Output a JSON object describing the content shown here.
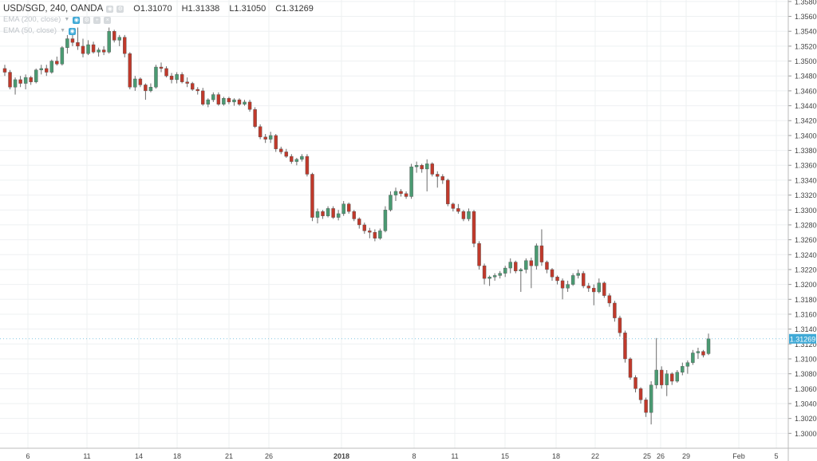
{
  "legend": {
    "symbol_line": "USD/SGD, 240, OANDA",
    "open": "O1.31070",
    "high": "H1.31338",
    "low": "L1.31050",
    "close": "C1.31269",
    "indicators": [
      {
        "label": "EMA (200, close)"
      },
      {
        "label": "EMA (50, close)"
      }
    ]
  },
  "price_label": "1.31269",
  "colors": {
    "up": "#4a9a72",
    "down": "#c0392b",
    "wick": "#6b6b6b",
    "grid": "#eef0f2",
    "axis_text": "#444444",
    "price_label_bg": "#3fa9d6"
  },
  "chart_data": {
    "type": "candlestick",
    "y_axis": {
      "range": [
        1.298,
        1.3582
      ],
      "ticks": [
        "1.35800",
        "1.35600",
        "1.35400",
        "1.35200",
        "1.35000",
        "1.34800",
        "1.34600",
        "1.34400",
        "1.34200",
        "1.34000",
        "1.33800",
        "1.33600",
        "1.33400",
        "1.33200",
        "1.33000",
        "1.32800",
        "1.32600",
        "1.32400",
        "1.32200",
        "1.32000",
        "1.31800",
        "1.31600",
        "1.31400",
        "1.31200",
        "1.31000",
        "1.30800",
        "1.30600",
        "1.30400",
        "1.30200",
        "1.30000"
      ]
    },
    "x_axis": {
      "ticks": [
        {
          "label": "6",
          "x": 35,
          "bold": false
        },
        {
          "label": "11",
          "x": 109,
          "bold": false
        },
        {
          "label": "14",
          "x": 174,
          "bold": false
        },
        {
          "label": "18",
          "x": 222,
          "bold": false
        },
        {
          "label": "21",
          "x": 287,
          "bold": false
        },
        {
          "label": "26",
          "x": 337,
          "bold": false
        },
        {
          "label": "2018",
          "x": 428,
          "bold": true
        },
        {
          "label": "8",
          "x": 519,
          "bold": false
        },
        {
          "label": "11",
          "x": 570,
          "bold": false
        },
        {
          "label": "15",
          "x": 633,
          "bold": false
        },
        {
          "label": "18",
          "x": 697,
          "bold": false
        },
        {
          "label": "22",
          "x": 746,
          "bold": false
        },
        {
          "label": "25",
          "x": 811,
          "bold": false
        },
        {
          "label": "26",
          "x": 828,
          "bold": false
        },
        {
          "label": "29",
          "x": 860,
          "bold": false
        },
        {
          "label": "Feb",
          "x": 926,
          "bold": false
        },
        {
          "label": "5",
          "x": 973,
          "bold": false
        }
      ]
    },
    "candles": [
      [
        1.349,
        1.3495,
        1.348,
        1.3485
      ],
      [
        1.3485,
        1.3488,
        1.3462,
        1.3465
      ],
      [
        1.3465,
        1.3478,
        1.3455,
        1.3475
      ],
      [
        1.3475,
        1.348,
        1.3465,
        1.347
      ],
      [
        1.347,
        1.3482,
        1.3462,
        1.3478
      ],
      [
        1.3478,
        1.348,
        1.3468,
        1.3472
      ],
      [
        1.3472,
        1.349,
        1.347,
        1.3488
      ],
      [
        1.3488,
        1.3495,
        1.3482,
        1.349
      ],
      [
        1.349,
        1.3495,
        1.348,
        1.3485
      ],
      [
        1.3485,
        1.3502,
        1.3483,
        1.35
      ],
      [
        1.35,
        1.3506,
        1.3494,
        1.3496
      ],
      [
        1.3496,
        1.352,
        1.3494,
        1.3518
      ],
      [
        1.3518,
        1.3535,
        1.351,
        1.353
      ],
      [
        1.353,
        1.354,
        1.352,
        1.3525
      ],
      [
        1.3525,
        1.3545,
        1.3515,
        1.352
      ],
      [
        1.352,
        1.353,
        1.3505,
        1.351
      ],
      [
        1.351,
        1.3528,
        1.3508,
        1.3522
      ],
      [
        1.3522,
        1.3526,
        1.351,
        1.3512
      ],
      [
        1.3512,
        1.3518,
        1.3506,
        1.3515
      ],
      [
        1.3515,
        1.352,
        1.3508,
        1.3512
      ],
      [
        1.3512,
        1.3545,
        1.351,
        1.354
      ],
      [
        1.354,
        1.3542,
        1.3525,
        1.3528
      ],
      [
        1.3528,
        1.3535,
        1.352,
        1.3532
      ],
      [
        1.3532,
        1.3535,
        1.3505,
        1.351
      ],
      [
        1.351,
        1.3512,
        1.3462,
        1.3465
      ],
      [
        1.3465,
        1.348,
        1.346,
        1.3476
      ],
      [
        1.3476,
        1.3478,
        1.3465,
        1.3468
      ],
      [
        1.3468,
        1.347,
        1.3448,
        1.346
      ],
      [
        1.346,
        1.347,
        1.3458,
        1.3465
      ],
      [
        1.3465,
        1.3495,
        1.3463,
        1.3492
      ],
      [
        1.3492,
        1.3498,
        1.3485,
        1.349
      ],
      [
        1.349,
        1.3493,
        1.3478,
        1.348
      ],
      [
        1.348,
        1.3484,
        1.347,
        1.3475
      ],
      [
        1.3475,
        1.3485,
        1.347,
        1.3482
      ],
      [
        1.3482,
        1.3485,
        1.347,
        1.3472
      ],
      [
        1.3472,
        1.3478,
        1.3465,
        1.347
      ],
      [
        1.347,
        1.3472,
        1.346,
        1.3462
      ],
      [
        1.3462,
        1.3465,
        1.3455,
        1.346
      ],
      [
        1.346,
        1.3464,
        1.344,
        1.3442
      ],
      [
        1.3442,
        1.345,
        1.3438,
        1.3448
      ],
      [
        1.3448,
        1.3458,
        1.3445,
        1.3455
      ],
      [
        1.3455,
        1.3458,
        1.344,
        1.3442
      ],
      [
        1.3442,
        1.3452,
        1.344,
        1.345
      ],
      [
        1.345,
        1.3452,
        1.3442,
        1.3445
      ],
      [
        1.3445,
        1.345,
        1.344,
        1.3448
      ],
      [
        1.3448,
        1.345,
        1.344,
        1.3442
      ],
      [
        1.3442,
        1.3448,
        1.344,
        1.3445
      ],
      [
        1.3445,
        1.3448,
        1.3432,
        1.3435
      ],
      [
        1.3435,
        1.3438,
        1.341,
        1.3412
      ],
      [
        1.3412,
        1.3415,
        1.3395,
        1.3398
      ],
      [
        1.3398,
        1.3402,
        1.339,
        1.3395
      ],
      [
        1.3395,
        1.3405,
        1.339,
        1.34
      ],
      [
        1.34,
        1.3402,
        1.3378,
        1.3382
      ],
      [
        1.3382,
        1.3385,
        1.3375,
        1.3378
      ],
      [
        1.3378,
        1.3382,
        1.337,
        1.3372
      ],
      [
        1.3372,
        1.3375,
        1.3362,
        1.3365
      ],
      [
        1.3365,
        1.337,
        1.336,
        1.3368
      ],
      [
        1.3368,
        1.3375,
        1.3365,
        1.3372
      ],
      [
        1.3372,
        1.3375,
        1.3345,
        1.3348
      ],
      [
        1.3348,
        1.335,
        1.3285,
        1.329
      ],
      [
        1.329,
        1.3302,
        1.3282,
        1.3298
      ],
      [
        1.3298,
        1.33,
        1.3288,
        1.3292
      ],
      [
        1.3292,
        1.3305,
        1.329,
        1.3302
      ],
      [
        1.3302,
        1.3305,
        1.3288,
        1.329
      ],
      [
        1.329,
        1.33,
        1.3286,
        1.3295
      ],
      [
        1.3295,
        1.3312,
        1.3292,
        1.3308
      ],
      [
        1.3308,
        1.331,
        1.3295,
        1.3298
      ],
      [
        1.3298,
        1.33,
        1.3285,
        1.3288
      ],
      [
        1.3288,
        1.329,
        1.3275,
        1.328
      ],
      [
        1.328,
        1.3283,
        1.3268,
        1.3272
      ],
      [
        1.3272,
        1.3276,
        1.3262,
        1.327
      ],
      [
        1.327,
        1.3274,
        1.3258,
        1.3262
      ],
      [
        1.3262,
        1.3275,
        1.326,
        1.3272
      ],
      [
        1.3272,
        1.3305,
        1.327,
        1.33
      ],
      [
        1.33,
        1.3325,
        1.3298,
        1.332
      ],
      [
        1.332,
        1.333,
        1.3312,
        1.3325
      ],
      [
        1.3325,
        1.3328,
        1.3318,
        1.3322
      ],
      [
        1.3322,
        1.3325,
        1.3315,
        1.3318
      ],
      [
        1.3318,
        1.3362,
        1.3315,
        1.3358
      ],
      [
        1.3358,
        1.3365,
        1.335,
        1.336
      ],
      [
        1.336,
        1.3362,
        1.335,
        1.3355
      ],
      [
        1.3355,
        1.3368,
        1.3325,
        1.3362
      ],
      [
        1.3362,
        1.3364,
        1.3345,
        1.3348
      ],
      [
        1.3348,
        1.3352,
        1.333,
        1.3345
      ],
      [
        1.3345,
        1.3348,
        1.3335,
        1.334
      ],
      [
        1.334,
        1.3342,
        1.3305,
        1.3308
      ],
      [
        1.3308,
        1.331,
        1.3298,
        1.3302
      ],
      [
        1.3302,
        1.3308,
        1.3295,
        1.3298
      ],
      [
        1.3298,
        1.33,
        1.3285,
        1.3288
      ],
      [
        1.3288,
        1.3302,
        1.3285,
        1.3298
      ],
      [
        1.3298,
        1.33,
        1.325,
        1.3255
      ],
      [
        1.3255,
        1.3258,
        1.322,
        1.3225
      ],
      [
        1.3225,
        1.3228,
        1.32,
        1.3208
      ],
      [
        1.3208,
        1.3212,
        1.3198,
        1.321
      ],
      [
        1.321,
        1.3215,
        1.3205,
        1.3212
      ],
      [
        1.3212,
        1.3218,
        1.3208,
        1.3215
      ],
      [
        1.3215,
        1.3225,
        1.321,
        1.3222
      ],
      [
        1.3222,
        1.3235,
        1.3215,
        1.323
      ],
      [
        1.323,
        1.3232,
        1.3215,
        1.3218
      ],
      [
        1.3218,
        1.3222,
        1.319,
        1.322
      ],
      [
        1.322,
        1.3235,
        1.3215,
        1.3232
      ],
      [
        1.3232,
        1.3236,
        1.3195,
        1.3225
      ],
      [
        1.3225,
        1.3255,
        1.322,
        1.3252
      ],
      [
        1.3252,
        1.3274,
        1.3225,
        1.323
      ],
      [
        1.323,
        1.3232,
        1.3215,
        1.322
      ],
      [
        1.322,
        1.3222,
        1.3205,
        1.321
      ],
      [
        1.321,
        1.3212,
        1.32,
        1.3205
      ],
      [
        1.3205,
        1.3208,
        1.318,
        1.3195
      ],
      [
        1.3195,
        1.3205,
        1.319,
        1.32
      ],
      [
        1.32,
        1.3215,
        1.3198,
        1.3212
      ],
      [
        1.3212,
        1.322,
        1.3208,
        1.3215
      ],
      [
        1.3215,
        1.3218,
        1.3195,
        1.3198
      ],
      [
        1.3198,
        1.3202,
        1.319,
        1.3195
      ],
      [
        1.3195,
        1.32,
        1.3172,
        1.319
      ],
      [
        1.319,
        1.3208,
        1.3188,
        1.3202
      ],
      [
        1.3202,
        1.3204,
        1.3182,
        1.3185
      ],
      [
        1.3185,
        1.3188,
        1.317,
        1.3175
      ],
      [
        1.3175,
        1.3178,
        1.315,
        1.3155
      ],
      [
        1.3155,
        1.3158,
        1.313,
        1.3135
      ],
      [
        1.3135,
        1.3138,
        1.3095,
        1.31
      ],
      [
        1.31,
        1.3102,
        1.3072,
        1.3075
      ],
      [
        1.3075,
        1.3078,
        1.3055,
        1.306
      ],
      [
        1.306,
        1.3062,
        1.304,
        1.3045
      ],
      [
        1.3045,
        1.3048,
        1.3022,
        1.3028
      ],
      [
        1.3028,
        1.307,
        1.3012,
        1.3065
      ],
      [
        1.3065,
        1.3128,
        1.306,
        1.3085
      ],
      [
        1.3085,
        1.309,
        1.306,
        1.3065
      ],
      [
        1.3065,
        1.3085,
        1.305,
        1.308
      ],
      [
        1.308,
        1.3082,
        1.3065,
        1.307
      ],
      [
        1.307,
        1.3085,
        1.3068,
        1.3082
      ],
      [
        1.3082,
        1.3095,
        1.3078,
        1.309
      ],
      [
        1.309,
        1.3098,
        1.308,
        1.3095
      ],
      [
        1.3095,
        1.3112,
        1.3092,
        1.3108
      ],
      [
        1.3108,
        1.3115,
        1.31,
        1.311
      ],
      [
        1.311,
        1.3112,
        1.3102,
        1.3105
      ],
      [
        1.3107,
        1.3134,
        1.3105,
        1.3127
      ]
    ]
  }
}
